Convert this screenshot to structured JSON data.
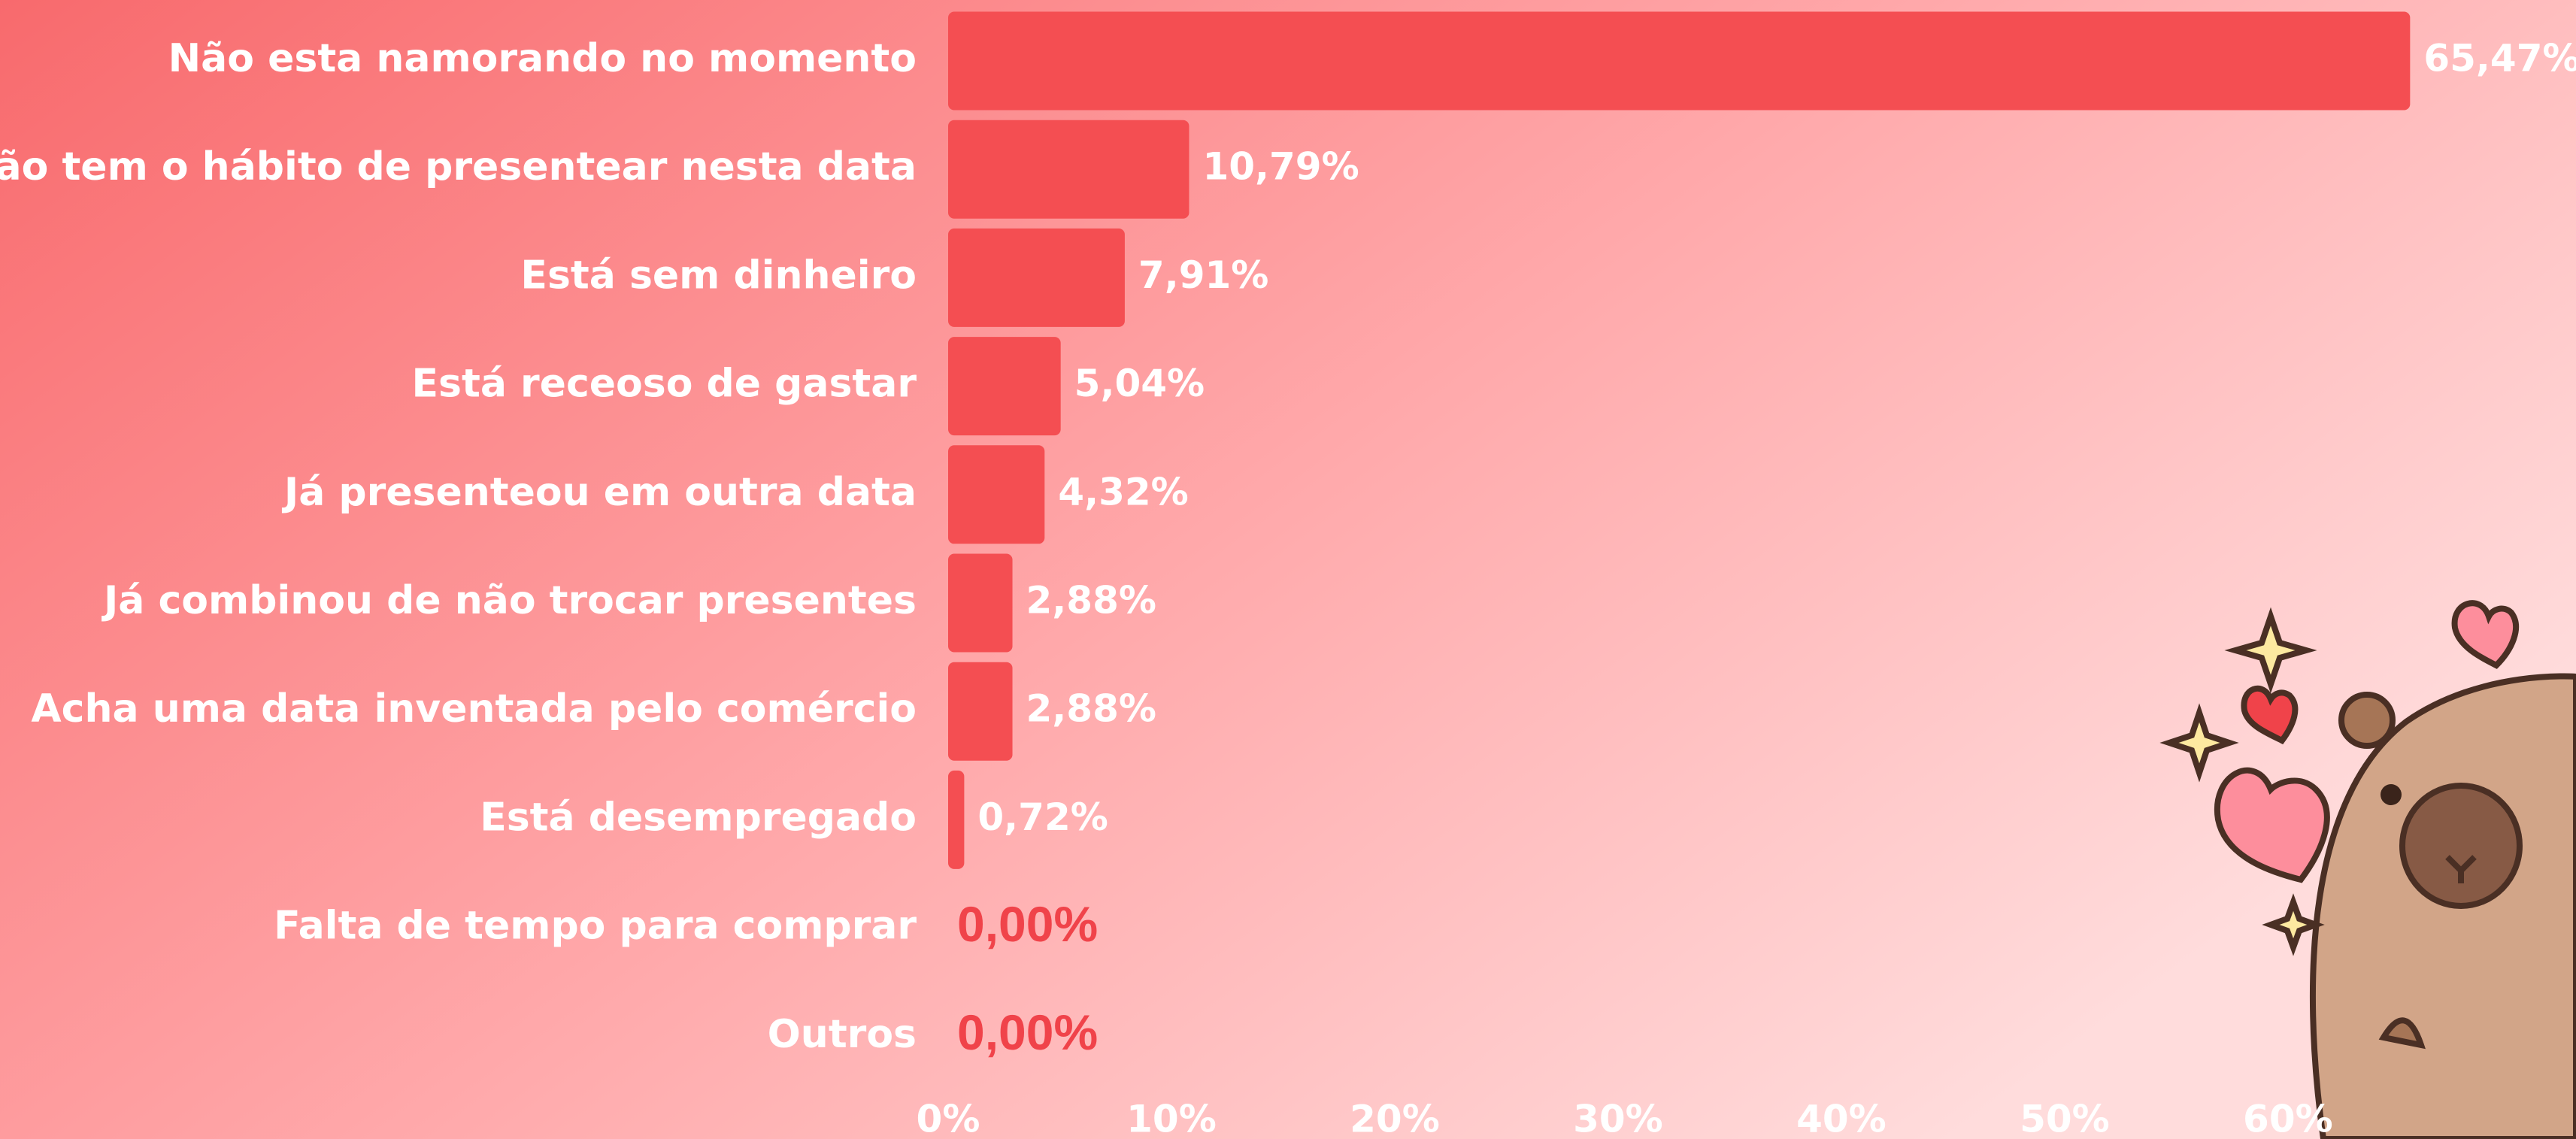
{
  "chart_data": {
    "type": "bar",
    "orientation": "horizontal",
    "color": "#f44e52",
    "categories": [
      "Não esta namorando no momento",
      "Não tem o hábito de presentear nesta data",
      "Está sem dinheiro",
      "Está receoso de gastar",
      "Já presenteou em outra data",
      "Já combinou de não trocar presentes",
      "Acha uma data inventada pelo comércio",
      "Está desempregado",
      "Falta de tempo para comprar",
      "Outros"
    ],
    "values": [
      65.47,
      10.79,
      7.91,
      5.04,
      4.32,
      2.88,
      2.88,
      0.72,
      0,
      0
    ],
    "value_labels": [
      "65,47%",
      "10,79%",
      "7,91%",
      "5,04%",
      "4,32%",
      "2,88%",
      "2,88%",
      "0,72%",
      "0,00%",
      "0,00%"
    ],
    "xlim": [
      0,
      72.9
    ],
    "xticks": [
      {
        "value": 0,
        "label": "0%"
      },
      {
        "value": 10,
        "label": "10%"
      },
      {
        "value": 20,
        "label": "20%"
      },
      {
        "value": 30,
        "label": "30%"
      },
      {
        "value": 40,
        "label": "40%"
      },
      {
        "value": 50,
        "label": "50%"
      },
      {
        "value": 60,
        "label": "60%"
      }
    ]
  }
}
